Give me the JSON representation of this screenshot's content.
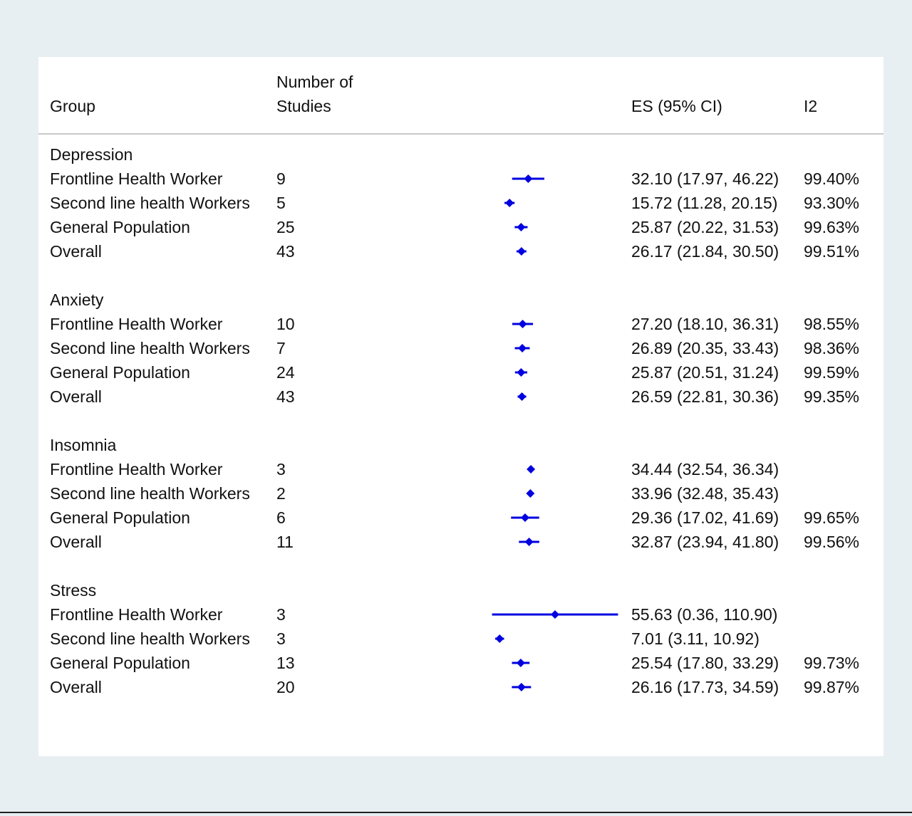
{
  "header": {
    "group": "Group",
    "studies_line1": "Number of",
    "studies_line2": "Studies",
    "es": "ES (95% CI)",
    "i2": "I2"
  },
  "chart_data": {
    "type": "forest",
    "xlim": [
      0,
      111
    ],
    "series_color": "#0000e0",
    "sections": [
      {
        "title": "Depression",
        "rows": [
          {
            "group": "Frontline Health Worker",
            "n": "9",
            "es": 32.1,
            "lo": 17.97,
            "hi": 46.22,
            "es_text": "32.10 (17.97, 46.22)",
            "i2": "99.40%"
          },
          {
            "group": "Second line health Workers",
            "n": "5",
            "es": 15.72,
            "lo": 11.28,
            "hi": 20.15,
            "es_text": "15.72 (11.28, 20.15)",
            "i2": "93.30%"
          },
          {
            "group": "General Population",
            "n": "25",
            "es": 25.87,
            "lo": 20.22,
            "hi": 31.53,
            "es_text": "25.87 (20.22, 31.53)",
            "i2": "99.63%"
          },
          {
            "group": "Overall",
            "n": "43",
            "es": 26.17,
            "lo": 21.84,
            "hi": 30.5,
            "es_text": "26.17 (21.84, 30.50)",
            "i2": "99.51%"
          }
        ]
      },
      {
        "title": "Anxiety",
        "rows": [
          {
            "group": "Frontline Health Worker",
            "n": "10",
            "es": 27.2,
            "lo": 18.1,
            "hi": 36.31,
            "es_text": "27.20 (18.10, 36.31)",
            "i2": "98.55%"
          },
          {
            "group": "Second line health Workers",
            "n": "7",
            "es": 26.89,
            "lo": 20.35,
            "hi": 33.43,
            "es_text": "26.89 (20.35, 33.43)",
            "i2": "98.36%"
          },
          {
            "group": "General Population",
            "n": "24",
            "es": 25.87,
            "lo": 20.51,
            "hi": 31.24,
            "es_text": "25.87 (20.51, 31.24)",
            "i2": "99.59%"
          },
          {
            "group": "Overall",
            "n": "43",
            "es": 26.59,
            "lo": 22.81,
            "hi": 30.36,
            "es_text": "26.59 (22.81, 30.36)",
            "i2": "99.35%"
          }
        ]
      },
      {
        "title": "Insomnia",
        "rows": [
          {
            "group": "Frontline Health Worker",
            "n": "3",
            "es": 34.44,
            "lo": 32.54,
            "hi": 36.34,
            "es_text": "34.44 (32.54, 36.34)",
            "i2": ""
          },
          {
            "group": "Second line health Workers",
            "n": "2",
            "es": 33.96,
            "lo": 32.48,
            "hi": 35.43,
            "es_text": "33.96 (32.48, 35.43)",
            "i2": ""
          },
          {
            "group": "General Population",
            "n": "6",
            "es": 29.36,
            "lo": 17.02,
            "hi": 41.69,
            "es_text": "29.36 (17.02, 41.69)",
            "i2": "99.65%"
          },
          {
            "group": "Overall",
            "n": "11",
            "es": 32.87,
            "lo": 23.94,
            "hi": 41.8,
            "es_text": "32.87 (23.94, 41.80)",
            "i2": "99.56%"
          }
        ]
      },
      {
        "title": "Stress",
        "rows": [
          {
            "group": "Frontline Health Worker",
            "n": "3",
            "es": 55.63,
            "lo": 0.36,
            "hi": 110.9,
            "es_text": "55.63 (0.36, 110.90)",
            "i2": ""
          },
          {
            "group": "Second line health Workers",
            "n": "3",
            "es": 7.01,
            "lo": 3.11,
            "hi": 10.92,
            "es_text": "7.01 (3.11, 10.92)",
            "i2": ""
          },
          {
            "group": "General Population",
            "n": "13",
            "es": 25.54,
            "lo": 17.8,
            "hi": 33.29,
            "es_text": "25.54 (17.80, 33.29)",
            "i2": "99.73%"
          },
          {
            "group": "Overall",
            "n": "20",
            "es": 26.16,
            "lo": 17.73,
            "hi": 34.59,
            "es_text": "26.16 (17.73, 34.59)",
            "i2": "99.87%"
          }
        ]
      }
    ]
  }
}
